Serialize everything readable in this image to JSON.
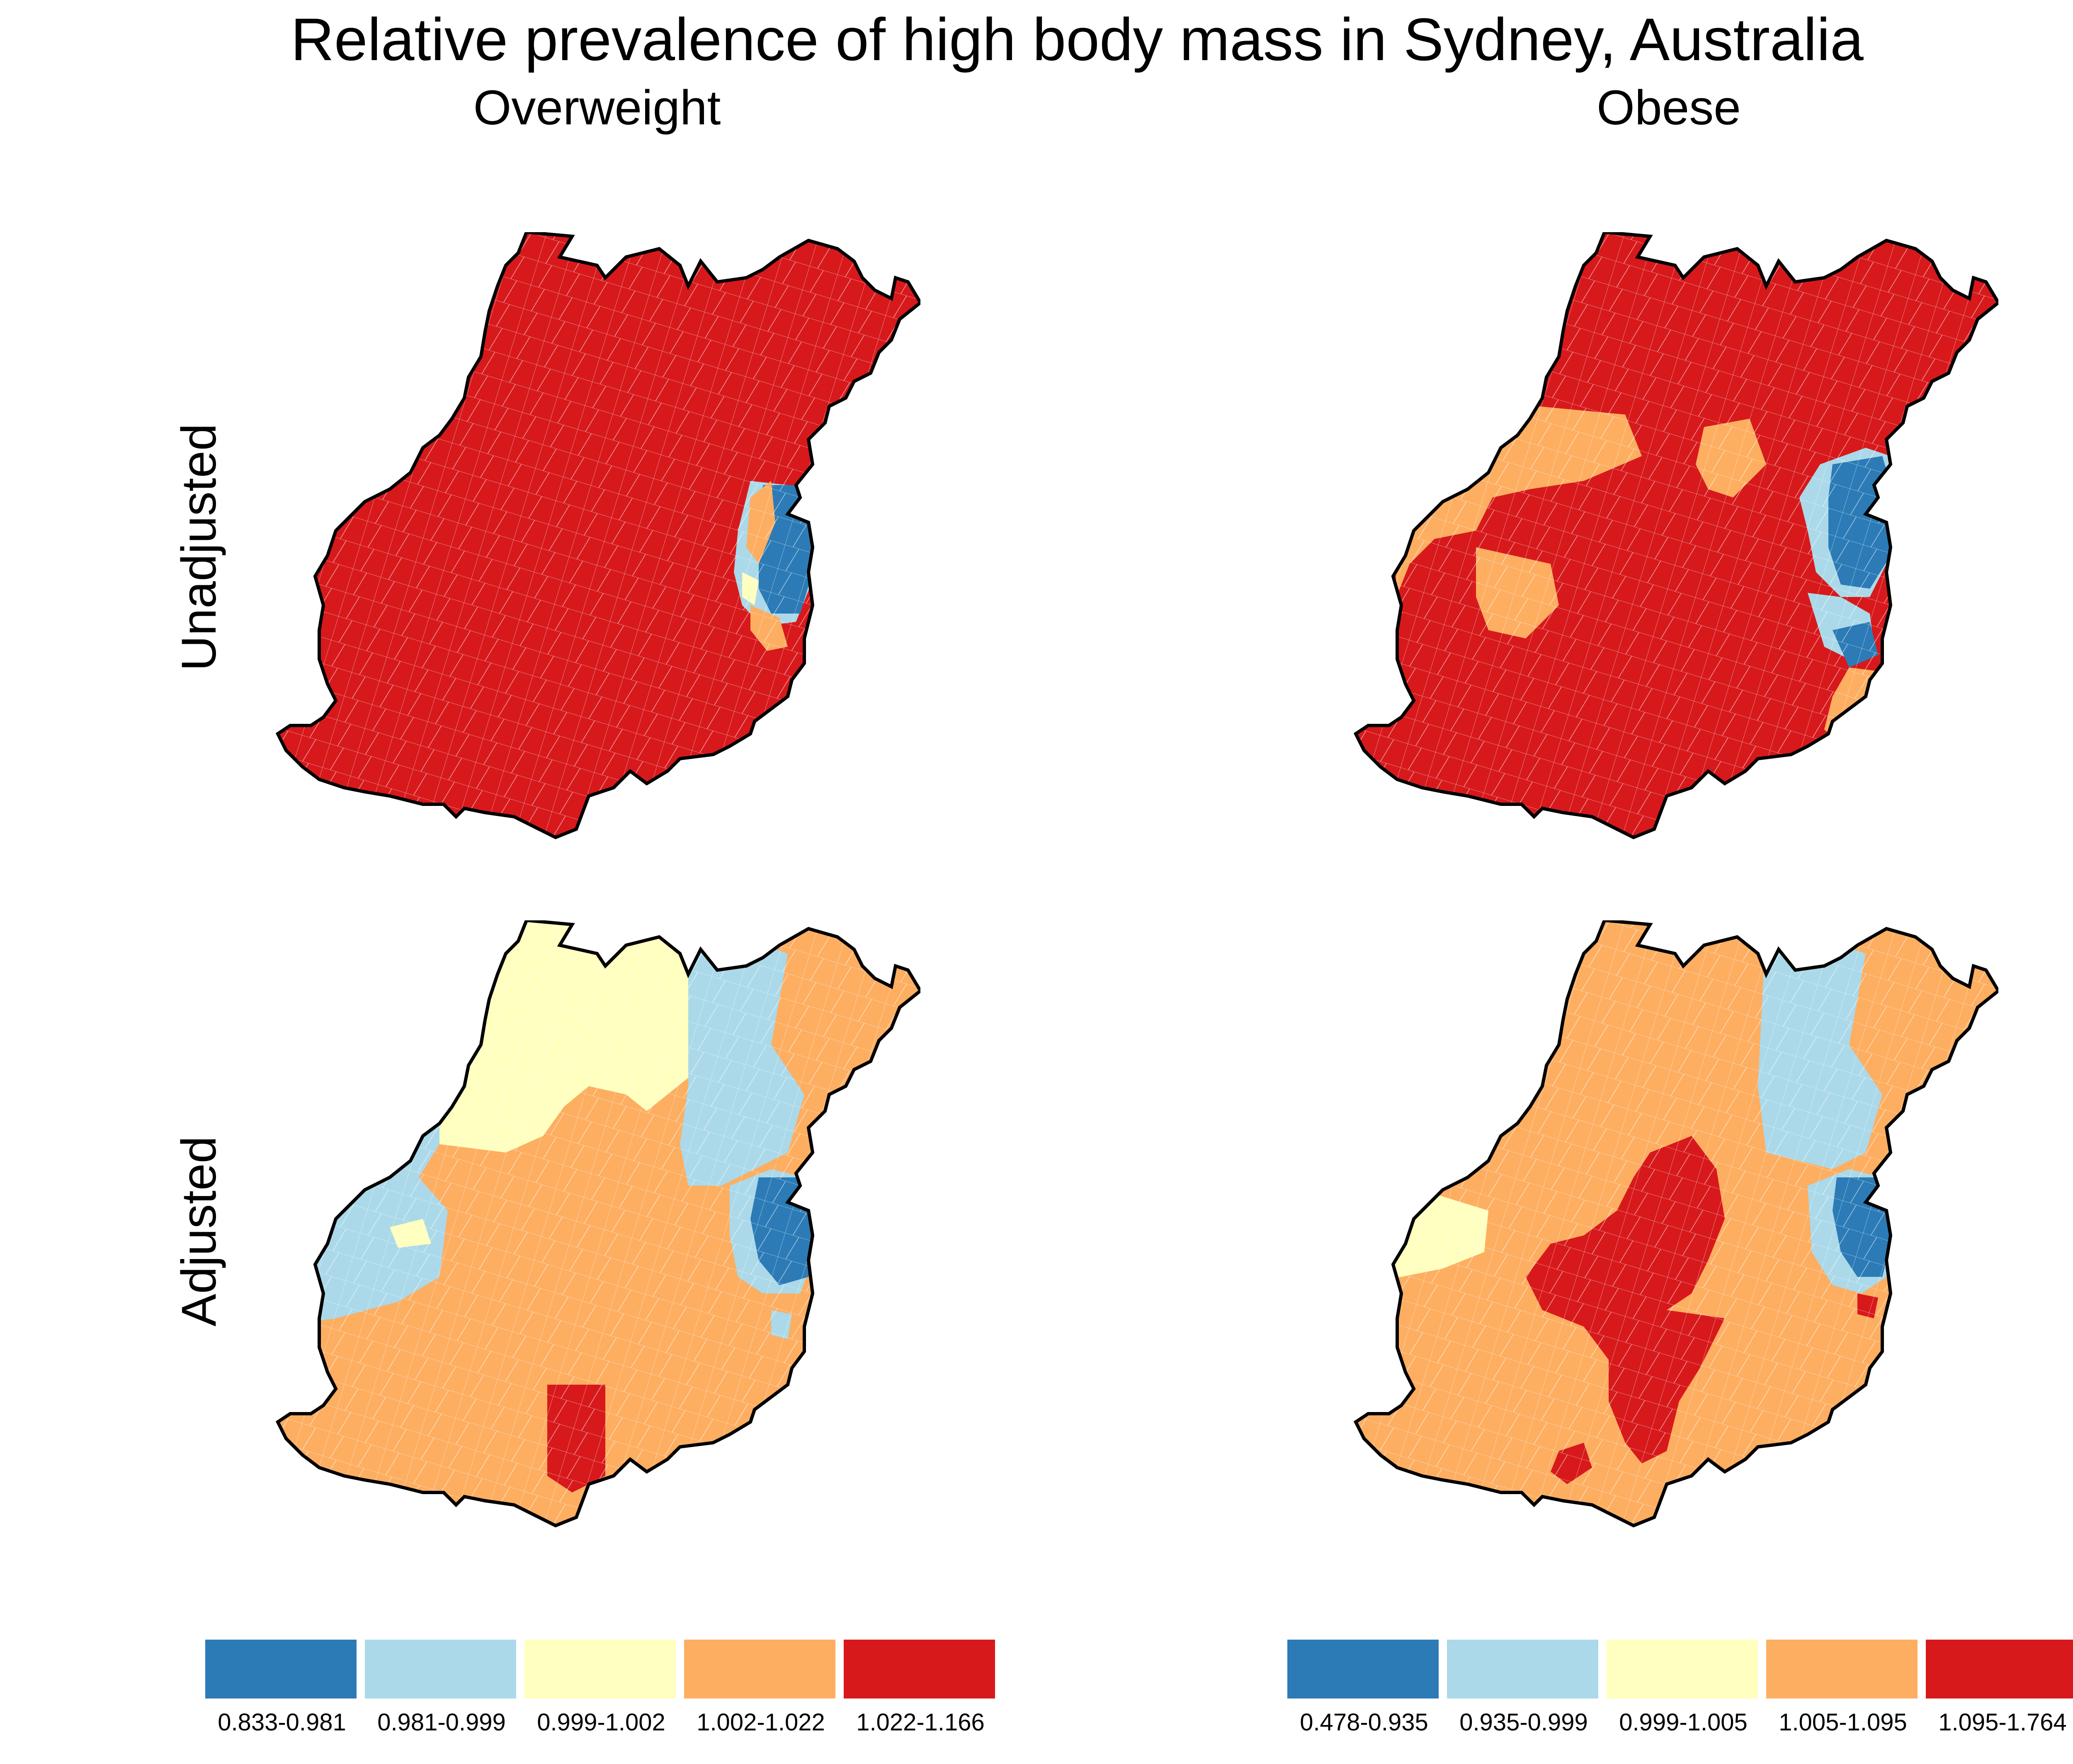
{
  "title": "Relative prevalence of high body mass in Sydney, Australia",
  "columns": [
    "Overweight",
    "Obese"
  ],
  "rows": [
    "Unadjusted",
    "Adjusted"
  ],
  "colors": {
    "c1": "#2c7bb6",
    "c2": "#abd9e9",
    "c3": "#ffffbf",
    "c4": "#fdae61",
    "c5": "#d7191c",
    "outline": "#000000",
    "internal_borders": "#ffffff"
  },
  "legends": {
    "overweight": [
      "0.833-0.981",
      "0.981-0.999",
      "0.999-1.002",
      "1.002-1.022",
      "1.022-1.166"
    ],
    "obese": [
      "0.478-0.935",
      "0.935-0.999",
      "0.999-1.005",
      "1.005-1.095",
      "1.095-1.764"
    ]
  },
  "panels": {
    "overweight_unadjusted": "Overweight / Unadjusted",
    "obese_unadjusted": "Obese / Unadjusted",
    "overweight_adjusted": "Overweight / Adjusted",
    "obese_adjusted": "Obese / Adjusted"
  }
}
